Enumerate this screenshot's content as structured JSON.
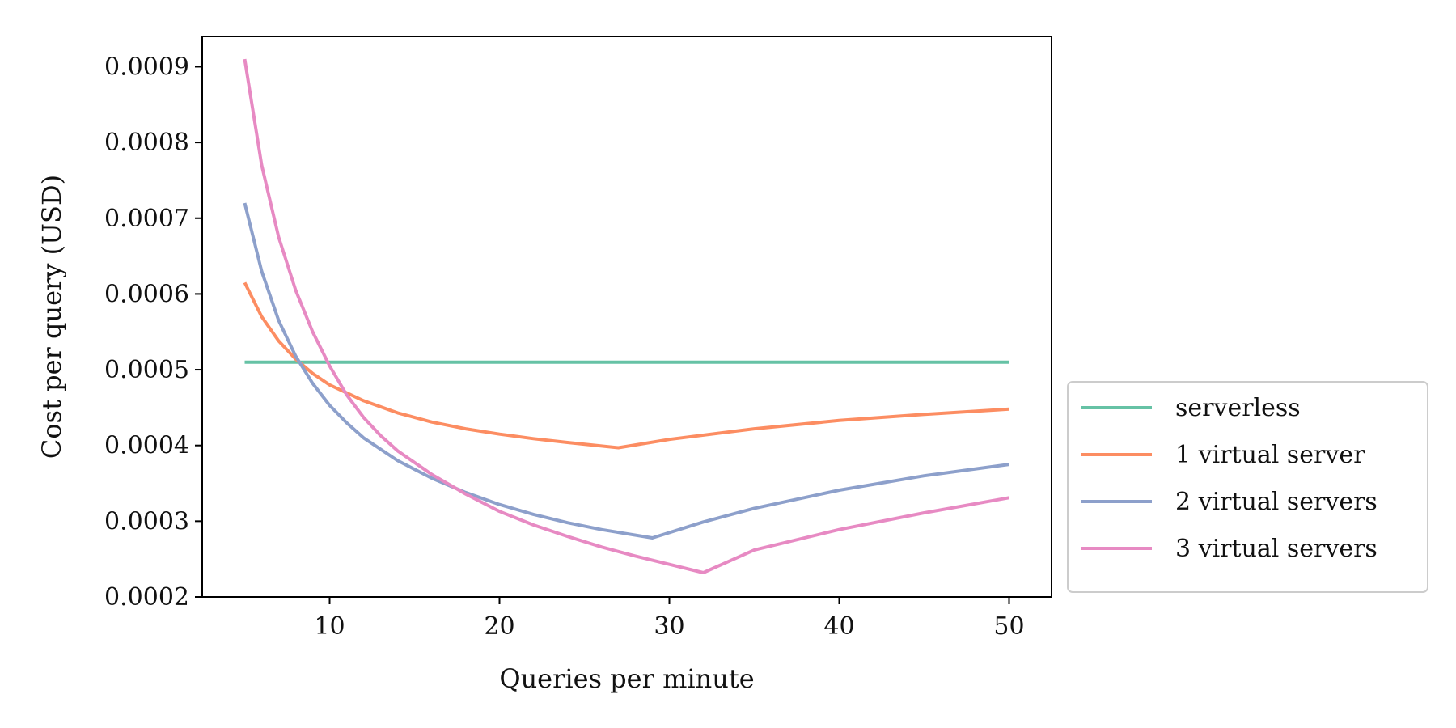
{
  "chart_data": {
    "type": "line",
    "xlabel": "Queries per minute",
    "ylabel": "Cost per query (USD)",
    "xlim": [
      2.5,
      52.5
    ],
    "ylim": [
      0.0002,
      0.00094
    ],
    "xticks": [
      10,
      20,
      30,
      40,
      50
    ],
    "xtick_labels": [
      "10",
      "20",
      "30",
      "40",
      "50"
    ],
    "yticks": [
      0.0002,
      0.0003,
      0.0004,
      0.0005,
      0.0006,
      0.0007,
      0.0008,
      0.0009
    ],
    "ytick_labels": [
      "0.0002",
      "0.0003",
      "0.0004",
      "0.0005",
      "0.0006",
      "0.0007",
      "0.0008",
      "0.0009"
    ],
    "grid": false,
    "legend_position": "right",
    "series": [
      {
        "name": "serverless",
        "color": "#66c2a5",
        "x": [
          5,
          50
        ],
        "y": [
          0.00051,
          0.00051
        ]
      },
      {
        "name": "1 virtual server",
        "color": "#fc8d62",
        "x": [
          5,
          6,
          7,
          8,
          9,
          10,
          12,
          14,
          16,
          18,
          20,
          22,
          24,
          27,
          30,
          35,
          40,
          45,
          50
        ],
        "y": [
          0.000615,
          0.00057,
          0.000538,
          0.000514,
          0.000495,
          0.00048,
          0.000459,
          0.000443,
          0.000431,
          0.000422,
          0.000415,
          0.000409,
          0.000404,
          0.000397,
          0.000408,
          0.000422,
          0.000433,
          0.000441,
          0.000448
        ]
      },
      {
        "name": "2 virtual servers",
        "color": "#8da0cb",
        "x": [
          5,
          6,
          7,
          8,
          9,
          10,
          11,
          12,
          14,
          16,
          18,
          20,
          22,
          24,
          26,
          29,
          32,
          35,
          40,
          45,
          50
        ],
        "y": [
          0.00072,
          0.00063,
          0.000565,
          0.000518,
          0.000482,
          0.000453,
          0.00043,
          0.00041,
          0.00038,
          0.000357,
          0.000338,
          0.000322,
          0.000309,
          0.000298,
          0.000289,
          0.000278,
          0.000299,
          0.000317,
          0.000341,
          0.00036,
          0.000375
        ]
      },
      {
        "name": "3 virtual servers",
        "color": "#e78ac3",
        "x": [
          5,
          6,
          7,
          8,
          9,
          10,
          11,
          12,
          13,
          14,
          16,
          18,
          20,
          22,
          24,
          26,
          28,
          30,
          32,
          35,
          40,
          45,
          50
        ],
        "y": [
          0.00091,
          0.00077,
          0.000675,
          0.000605,
          0.00055,
          0.000505,
          0.000467,
          0.000437,
          0.000413,
          0.000393,
          0.000362,
          0.000336,
          0.000313,
          0.000295,
          0.00028,
          0.000266,
          0.000254,
          0.000243,
          0.000232,
          0.000262,
          0.000289,
          0.000311,
          0.000331
        ]
      }
    ]
  }
}
